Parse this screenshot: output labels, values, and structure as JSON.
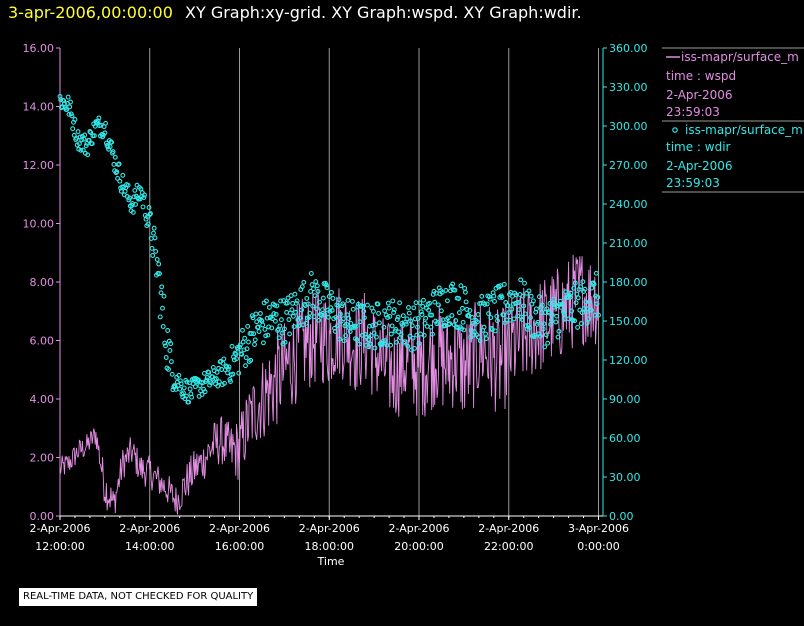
{
  "header": {
    "datetime": "3-apr-2006,00:00:00",
    "title": "XY Graph:xy-grid.  XY Graph:wspd.  XY Graph:wdir."
  },
  "legend": {
    "series1_name": "iss-mapr/surface_m",
    "series1_var": "time : wspd",
    "series1_date": "2-Apr-2006",
    "series1_time": "23:59:03",
    "series2_name": "iss-mapr/surface_m",
    "series2_var": "time : wdir",
    "series2_date": "2-Apr-2006",
    "series2_time": "23:59:03"
  },
  "footer_note": "REAL-TIME DATA, NOT CHECKED FOR QUALITY",
  "colors": {
    "wspd": "#e38ee3",
    "wdir": "#33e8e8",
    "grid": "#9a9a9a",
    "header_date": "#ffff33"
  },
  "chart_data": {
    "type": "line",
    "xlabel": "Time",
    "x_range_hours": [
      12.0,
      24.1
    ],
    "x_ticks": [
      {
        "hour": 12,
        "date": "2-Apr-2006",
        "time": "12:00:00"
      },
      {
        "hour": 14,
        "date": "2-Apr-2006",
        "time": "14:00:00"
      },
      {
        "hour": 16,
        "date": "2-Apr-2006",
        "time": "16:00:00"
      },
      {
        "hour": 18,
        "date": "2-Apr-2006",
        "time": "18:00:00"
      },
      {
        "hour": 20,
        "date": "2-Apr-2006",
        "time": "20:00:00"
      },
      {
        "hour": 22,
        "date": "2-Apr-2006",
        "time": "22:00:00"
      },
      {
        "hour": 24,
        "date": "3-Apr-2006",
        "time": "0:00:00"
      }
    ],
    "y_left": {
      "range": [
        0,
        16
      ],
      "ticks": [
        "0.00",
        "2.00",
        "4.00",
        "6.00",
        "8.00",
        "10.00",
        "12.00",
        "14.00",
        "16.00"
      ]
    },
    "y_right": {
      "range": [
        0,
        360
      ],
      "ticks": [
        "0.00",
        "30.00",
        "60.00",
        "90.00",
        "120.00",
        "150.00",
        "180.00",
        "210.00",
        "240.00",
        "270.00",
        "300.00",
        "330.00",
        "360.00"
      ]
    },
    "series": [
      {
        "name": "time : wspd",
        "axis": "left",
        "style": "line",
        "x": [
          12.0,
          12.2,
          12.4,
          12.6,
          12.8,
          13.0,
          13.2,
          13.4,
          13.6,
          13.8,
          14.0,
          14.2,
          14.4,
          14.6,
          14.8,
          15.0,
          15.2,
          15.4,
          15.6,
          15.8,
          16.0,
          16.2,
          16.4,
          16.6,
          16.8,
          17.0,
          17.2,
          17.4,
          17.6,
          17.8,
          18.0,
          18.2,
          18.4,
          18.6,
          18.8,
          19.0,
          19.2,
          19.4,
          19.6,
          19.8,
          20.0,
          20.2,
          20.4,
          20.6,
          20.8,
          21.0,
          21.2,
          21.4,
          21.6,
          21.8,
          22.0,
          22.2,
          22.4,
          22.6,
          22.8,
          23.0,
          23.2,
          23.4,
          23.6,
          23.8,
          24.0
        ],
        "values": [
          1.6,
          1.8,
          2.2,
          2.4,
          2.8,
          1.0,
          0.4,
          1.8,
          2.2,
          1.6,
          1.5,
          1.2,
          0.9,
          0.5,
          1.1,
          1.6,
          1.9,
          2.4,
          2.6,
          2.2,
          2.3,
          3.2,
          3.8,
          4.2,
          4.6,
          5.0,
          5.4,
          5.8,
          6.0,
          6.2,
          6.0,
          6.4,
          6.2,
          5.8,
          6.1,
          5.6,
          5.2,
          4.9,
          5.1,
          5.4,
          5.0,
          5.3,
          5.6,
          5.2,
          5.5,
          5.0,
          5.4,
          5.8,
          5.5,
          5.2,
          5.6,
          6.0,
          6.2,
          6.4,
          6.6,
          6.8,
          7.0,
          7.3,
          7.6,
          7.4,
          7.5
        ],
        "jitter": [
          0.3,
          0.3,
          0.3,
          0.3,
          0.3,
          0.5,
          0.4,
          0.4,
          0.4,
          0.4,
          0.4,
          0.4,
          0.4,
          0.4,
          0.5,
          0.5,
          0.5,
          0.6,
          0.6,
          0.7,
          0.8,
          0.9,
          1.0,
          1.1,
          1.2,
          1.2,
          1.2,
          1.2,
          1.2,
          1.2,
          1.2,
          1.2,
          1.2,
          1.2,
          1.2,
          1.2,
          1.2,
          1.2,
          1.2,
          1.2,
          1.3,
          1.3,
          1.3,
          1.3,
          1.3,
          1.3,
          1.3,
          1.3,
          1.3,
          1.3,
          1.3,
          1.3,
          1.2,
          1.2,
          1.2,
          1.2,
          1.2,
          1.2,
          1.2,
          1.2,
          1.2
        ]
      },
      {
        "name": "time : wdir",
        "axis": "right",
        "style": "scatter",
        "x": [
          12.0,
          12.2,
          12.4,
          12.6,
          12.8,
          13.0,
          13.2,
          13.4,
          13.6,
          13.8,
          14.0,
          14.1,
          14.2,
          14.3,
          14.5,
          14.7,
          14.9,
          15.1,
          15.3,
          15.5,
          15.7,
          15.9,
          16.1,
          16.3,
          16.5,
          16.8,
          17.0,
          17.3,
          17.6,
          18.0,
          18.3,
          18.6,
          18.9,
          19.2,
          19.5,
          19.8,
          20.1,
          20.4,
          20.7,
          21.0,
          21.3,
          21.6,
          21.9,
          22.2,
          22.5,
          22.8,
          23.1,
          23.4,
          23.7,
          24.0
        ],
        "values": [
          320,
          315,
          290,
          285,
          300,
          300,
          275,
          255,
          240,
          250,
          225,
          205,
          185,
          150,
          112,
          100,
          95,
          100,
          103,
          108,
          112,
          120,
          130,
          140,
          148,
          152,
          150,
          160,
          170,
          160,
          150,
          148,
          145,
          148,
          150,
          145,
          150,
          160,
          165,
          160,
          150,
          155,
          162,
          168,
          155,
          148,
          155,
          160,
          165,
          170
        ],
        "jitter": [
          5,
          6,
          5,
          6,
          5,
          6,
          6,
          6,
          6,
          6,
          8,
          12,
          12,
          18,
          10,
          6,
          6,
          6,
          6,
          6,
          8,
          10,
          12,
          12,
          12,
          12,
          12,
          12,
          12,
          12,
          12,
          12,
          12,
          12,
          12,
          12,
          12,
          12,
          12,
          12,
          12,
          12,
          12,
          12,
          12,
          12,
          12,
          12,
          12,
          12
        ]
      }
    ]
  }
}
